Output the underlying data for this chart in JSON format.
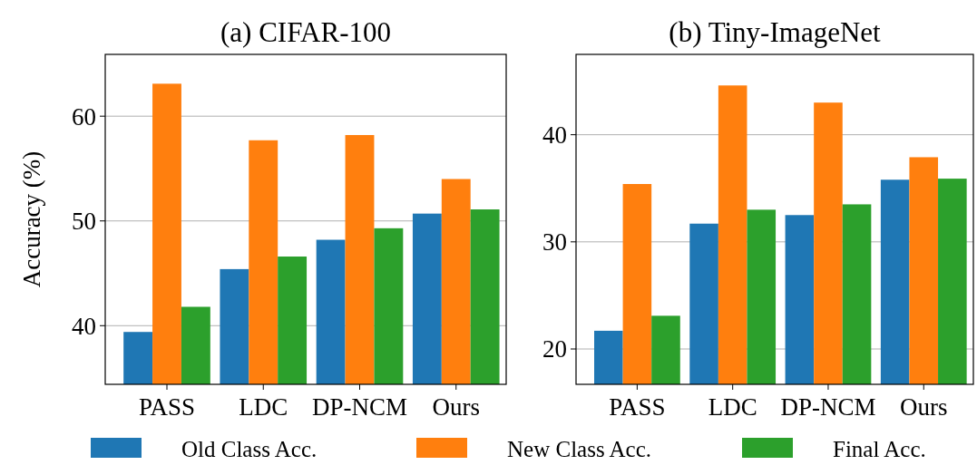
{
  "chart_data": [
    {
      "type": "bar",
      "title": "(a) CIFAR-100",
      "ylabel": "Accuracy (%)",
      "categories": [
        "PASS",
        "LDC",
        "DP-NCM",
        "Ours"
      ],
      "ylim": [
        34.4,
        65.9
      ],
      "yticks": [
        40,
        50,
        60
      ],
      "grid": "y",
      "legend": "bottom",
      "series": [
        {
          "name": "Old Class Acc.",
          "color": "#1f77b4",
          "values": [
            39.4,
            45.4,
            48.2,
            50.7
          ]
        },
        {
          "name": "New Class Acc.",
          "color": "#ff7f0e",
          "values": [
            63.1,
            57.7,
            58.2,
            54.0
          ]
        },
        {
          "name": "Final Acc.",
          "color": "#2ca02c",
          "values": [
            41.8,
            46.6,
            49.3,
            51.1
          ]
        }
      ]
    },
    {
      "type": "bar",
      "title": "(b) Tiny-ImageNet",
      "categories": [
        "PASS",
        "LDC",
        "DP-NCM",
        "Ours"
      ],
      "ylim": [
        16.7,
        47.5
      ],
      "yticks": [
        20,
        30,
        40
      ],
      "grid": "y",
      "series": [
        {
          "color": "#1f77b4",
          "values": [
            21.7,
            31.7,
            32.5,
            35.8
          ]
        },
        {
          "color": "#ff7f0e",
          "values": [
            35.4,
            44.6,
            43.0,
            37.9
          ]
        },
        {
          "color": "#2ca02c",
          "values": [
            23.1,
            33.0,
            33.5,
            35.9
          ]
        }
      ]
    }
  ]
}
